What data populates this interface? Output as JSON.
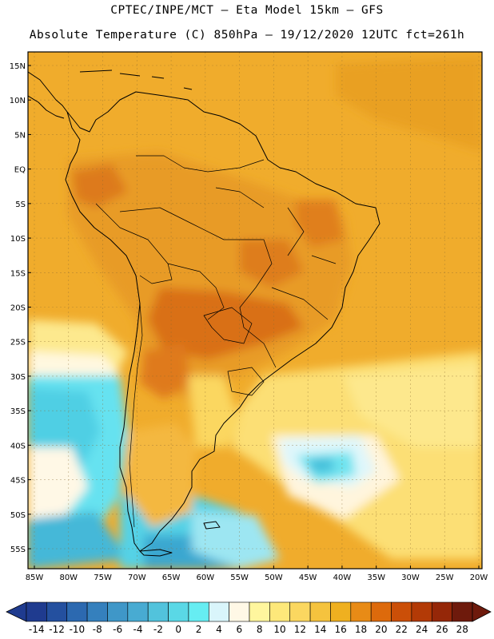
{
  "header": {
    "line1": "CPTEC/INPE/MCT –  Eta Model 15km – GFS",
    "line2": "Absolute Temperature (C) 850hPa – 19/12/2020 12UTC fct=261h"
  },
  "map": {
    "lat_labels": [
      "15N",
      "10N",
      "5N",
      "EQ",
      "5S",
      "10S",
      "15S",
      "20S",
      "25S",
      "30S",
      "35S",
      "40S",
      "45S",
      "50S",
      "55S"
    ],
    "lon_labels": [
      "85W",
      "80W",
      "75W",
      "70W",
      "65W",
      "60W",
      "55W",
      "50W",
      "45W",
      "40W",
      "35W",
      "30W",
      "25W",
      "20W"
    ],
    "lat_values": [
      15,
      10,
      5,
      0,
      -5,
      -10,
      -15,
      -20,
      -25,
      -30,
      -35,
      -40,
      -45,
      -50,
      -55
    ],
    "lon_values": [
      -85,
      -80,
      -75,
      -70,
      -65,
      -60,
      -55,
      -50,
      -45,
      -40,
      -35,
      -30,
      -25,
      -20
    ]
  },
  "colorbar": {
    "labels": [
      "-14",
      "-12",
      "-10",
      "-8",
      "-6",
      "-4",
      "-2",
      "0",
      "2",
      "4",
      "6",
      "8",
      "10",
      "12",
      "14",
      "16",
      "18",
      "20",
      "22",
      "24",
      "26",
      "28"
    ],
    "colors": [
      "#1f3b8f",
      "#24509f",
      "#2c69b0",
      "#3580bd",
      "#3f97c8",
      "#48abd2",
      "#52c3dc",
      "#5ad8e6",
      "#66edf2",
      "#d9f5fb",
      "#fff8e6",
      "#fff69e",
      "#fde87a",
      "#fbd760",
      "#f5c33e",
      "#efb020",
      "#e88b16",
      "#dd6a0c",
      "#cb4f08",
      "#b33a06",
      "#952708",
      "#6e1a0c"
    ]
  },
  "colors": {
    "warm_high": "#e59a28",
    "warm_mid": "#f0ac2c",
    "cold_cyan": "#5fe4f0",
    "cold_blue": "#3aa0cf"
  }
}
